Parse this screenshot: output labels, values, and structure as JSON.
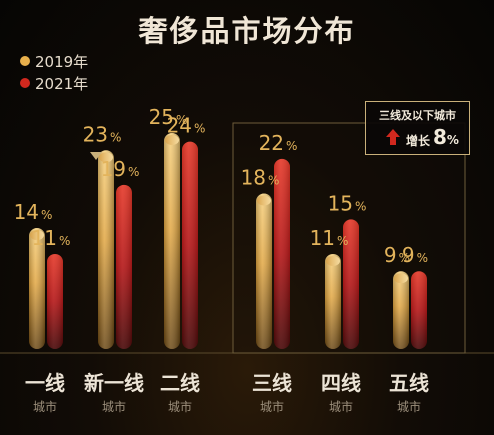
{
  "chart_data": {
    "type": "bar",
    "title": "奢侈品市场分布",
    "value_suffix": "%",
    "categories": [
      {
        "name": "一线",
        "sub": "城市"
      },
      {
        "name": "新一线",
        "sub": "城市"
      },
      {
        "name": "二线",
        "sub": "城市"
      },
      {
        "name": "三线",
        "sub": "城市"
      },
      {
        "name": "四线",
        "sub": "城市"
      },
      {
        "name": "五线",
        "sub": "城市"
      }
    ],
    "series": [
      {
        "name": "2019年",
        "color": "#e8b04c",
        "values": [
          14,
          23,
          25,
          18,
          11,
          9
        ]
      },
      {
        "name": "2021年",
        "color": "#d2281e",
        "values": [
          11,
          19,
          24,
          22,
          15,
          9
        ]
      }
    ],
    "ylim": [
      0,
      25
    ],
    "legend_position": "top-left",
    "grid": false
  },
  "callout": {
    "title": "三线及以下城市",
    "label": "增长",
    "value": "8",
    "unit": "%"
  },
  "colors": {
    "gold": "#e8b04c",
    "red": "#d2281e",
    "frame": "#c9b07a",
    "label": "#e3b45c"
  }
}
